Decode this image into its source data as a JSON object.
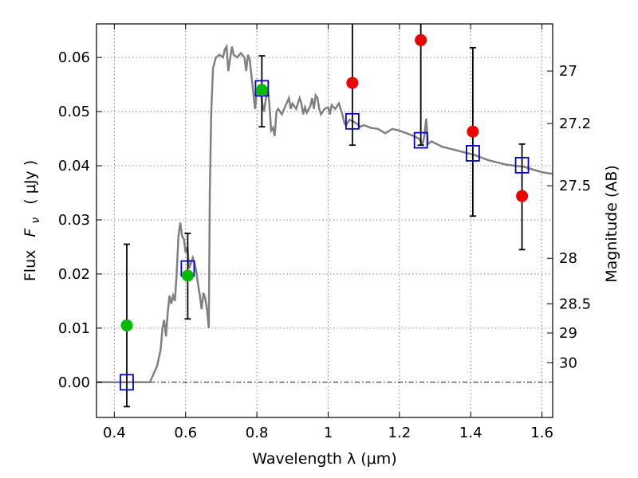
{
  "chart_data": {
    "type": "scatter",
    "xlabel": "Wavelength  λ (μm)",
    "ylabel": "Flux  F_ν  ( μJy )",
    "ylabel_parts": {
      "prefix": "Flux",
      "symbol": "F",
      "subscript": "ν",
      "unit": "( μJy )"
    },
    "ylabel_right": "Magnitude (AB)",
    "xlim": [
      0.35,
      1.63
    ],
    "ylim": [
      -0.0065,
      0.0662
    ],
    "x_ticks": [
      0.4,
      0.6,
      0.8,
      1.0,
      1.2,
      1.4,
      1.6
    ],
    "x_tick_labels": [
      "0.4",
      "0.6",
      "0.8",
      "1",
      "1.2",
      "1.4",
      "1.6"
    ],
    "y_ticks": [
      0.0,
      0.01,
      0.02,
      0.03,
      0.04,
      0.05,
      0.06
    ],
    "y_tick_labels": [
      "0.00",
      "0.01",
      "0.02",
      "0.03",
      "0.04",
      "0.05",
      "0.06"
    ],
    "right_ticks": [
      {
        "label": "27",
        "flux": 0.0575
      },
      {
        "label": "27.2",
        "flux": 0.0478
      },
      {
        "label": "27.5",
        "flux": 0.0363
      },
      {
        "label": "28",
        "flux": 0.0229
      },
      {
        "label": "28.5",
        "flux": 0.0145
      },
      {
        "label": "29",
        "flux": 0.0091
      },
      {
        "label": "30",
        "flux": 0.0036
      }
    ],
    "grid": true,
    "colors": {
      "model": "#808080",
      "detection": "#00bb00",
      "nondetection": "#ee0000",
      "model_flux": "#0000cc",
      "errorbar": "#000000"
    },
    "model_sed": [
      [
        0.35,
        0.0
      ],
      [
        0.48,
        0.0
      ],
      [
        0.5,
        0.0
      ],
      [
        0.51,
        0.0015
      ],
      [
        0.52,
        0.003
      ],
      [
        0.53,
        0.006
      ],
      [
        0.535,
        0.01
      ],
      [
        0.54,
        0.0115
      ],
      [
        0.545,
        0.0085
      ],
      [
        0.55,
        0.013
      ],
      [
        0.555,
        0.016
      ],
      [
        0.56,
        0.0145
      ],
      [
        0.565,
        0.016
      ],
      [
        0.57,
        0.015
      ],
      [
        0.575,
        0.02
      ],
      [
        0.58,
        0.027
      ],
      [
        0.585,
        0.0295
      ],
      [
        0.59,
        0.027
      ],
      [
        0.595,
        0.0265
      ],
      [
        0.6,
        0.024
      ],
      [
        0.605,
        0.025
      ],
      [
        0.61,
        0.021
      ],
      [
        0.62,
        0.023
      ],
      [
        0.625,
        0.022
      ],
      [
        0.63,
        0.0205
      ],
      [
        0.635,
        0.018
      ],
      [
        0.64,
        0.016
      ],
      [
        0.645,
        0.0135
      ],
      [
        0.65,
        0.0165
      ],
      [
        0.655,
        0.0155
      ],
      [
        0.66,
        0.0135
      ],
      [
        0.665,
        0.01
      ],
      [
        0.668,
        0.035
      ],
      [
        0.672,
        0.05
      ],
      [
        0.677,
        0.058
      ],
      [
        0.685,
        0.06
      ],
      [
        0.695,
        0.0605
      ],
      [
        0.705,
        0.06
      ],
      [
        0.71,
        0.0615
      ],
      [
        0.715,
        0.062
      ],
      [
        0.72,
        0.0575
      ],
      [
        0.73,
        0.062
      ],
      [
        0.735,
        0.0605
      ],
      [
        0.745,
        0.06
      ],
      [
        0.755,
        0.0608
      ],
      [
        0.765,
        0.06
      ],
      [
        0.77,
        0.0575
      ],
      [
        0.775,
        0.0605
      ],
      [
        0.78,
        0.0595
      ],
      [
        0.79,
        0.0535
      ],
      [
        0.795,
        0.0505
      ],
      [
        0.8,
        0.054
      ],
      [
        0.81,
        0.0545
      ],
      [
        0.815,
        0.0515
      ],
      [
        0.82,
        0.05
      ],
      [
        0.83,
        0.0545
      ],
      [
        0.835,
        0.0515
      ],
      [
        0.84,
        0.0465
      ],
      [
        0.845,
        0.047
      ],
      [
        0.85,
        0.0455
      ],
      [
        0.855,
        0.05
      ],
      [
        0.86,
        0.0505
      ],
      [
        0.87,
        0.0495
      ],
      [
        0.88,
        0.051
      ],
      [
        0.89,
        0.0525
      ],
      [
        0.895,
        0.0505
      ],
      [
        0.9,
        0.0515
      ],
      [
        0.91,
        0.0505
      ],
      [
        0.92,
        0.0525
      ],
      [
        0.925,
        0.0515
      ],
      [
        0.93,
        0.0495
      ],
      [
        0.935,
        0.0508
      ],
      [
        0.94,
        0.0498
      ],
      [
        0.95,
        0.051
      ],
      [
        0.955,
        0.0525
      ],
      [
        0.96,
        0.0505
      ],
      [
        0.965,
        0.053
      ],
      [
        0.97,
        0.0525
      ],
      [
        0.975,
        0.0505
      ],
      [
        0.98,
        0.0495
      ],
      [
        0.99,
        0.0505
      ],
      [
        1.0,
        0.0508
      ],
      [
        1.005,
        0.0495
      ],
      [
        1.01,
        0.0512
      ],
      [
        1.02,
        0.0505
      ],
      [
        1.03,
        0.0515
      ],
      [
        1.04,
        0.0495
      ],
      [
        1.045,
        0.048
      ],
      [
        1.05,
        0.0475
      ],
      [
        1.06,
        0.0485
      ],
      [
        1.07,
        0.0482
      ],
      [
        1.08,
        0.0478
      ],
      [
        1.09,
        0.0472
      ],
      [
        1.1,
        0.0475
      ],
      [
        1.12,
        0.047
      ],
      [
        1.14,
        0.0468
      ],
      [
        1.16,
        0.046
      ],
      [
        1.18,
        0.0468
      ],
      [
        1.2,
        0.0465
      ],
      [
        1.22,
        0.046
      ],
      [
        1.24,
        0.0455
      ],
      [
        1.255,
        0.045
      ],
      [
        1.26,
        0.0445
      ],
      [
        1.265,
        0.044
      ],
      [
        1.27,
        0.0455
      ],
      [
        1.275,
        0.0487
      ],
      [
        1.28,
        0.044
      ],
      [
        1.29,
        0.0445
      ],
      [
        1.32,
        0.0435
      ],
      [
        1.35,
        0.043
      ],
      [
        1.38,
        0.0425
      ],
      [
        1.41,
        0.042
      ],
      [
        1.45,
        0.041
      ],
      [
        1.5,
        0.0402
      ],
      [
        1.55,
        0.0398
      ],
      [
        1.58,
        0.0392
      ],
      [
        1.6,
        0.0388
      ],
      [
        1.63,
        0.0385
      ]
    ],
    "model_flux": [
      {
        "x": 0.435,
        "y": 0.0
      },
      {
        "x": 0.606,
        "y": 0.021
      },
      {
        "x": 0.814,
        "y": 0.0543
      },
      {
        "x": 1.068,
        "y": 0.0482
      },
      {
        "x": 1.26,
        "y": 0.0447
      },
      {
        "x": 1.406,
        "y": 0.0423
      },
      {
        "x": 1.544,
        "y": 0.0401
      }
    ],
    "photometry": [
      {
        "x": 0.435,
        "y": 0.0105,
        "ylow": -0.0045,
        "yhigh": 0.0255,
        "band": "detection"
      },
      {
        "x": 0.606,
        "y": 0.0197,
        "ylow": 0.0117,
        "yhigh": 0.0275,
        "band": "detection"
      },
      {
        "x": 0.814,
        "y": 0.054,
        "ylow": 0.0472,
        "yhigh": 0.0603,
        "band": "detection"
      },
      {
        "x": 1.068,
        "y": 0.0553,
        "ylow": 0.0438,
        "yhigh": 0.07,
        "band": "nondetection"
      },
      {
        "x": 1.26,
        "y": 0.0632,
        "ylow": 0.0438,
        "yhigh": 0.07,
        "band": "nondetection"
      },
      {
        "x": 1.406,
        "y": 0.0463,
        "ylow": 0.0307,
        "yhigh": 0.0618,
        "band": "nondetection"
      },
      {
        "x": 1.544,
        "y": 0.0344,
        "ylow": 0.0245,
        "yhigh": 0.044,
        "band": "nondetection"
      }
    ]
  }
}
